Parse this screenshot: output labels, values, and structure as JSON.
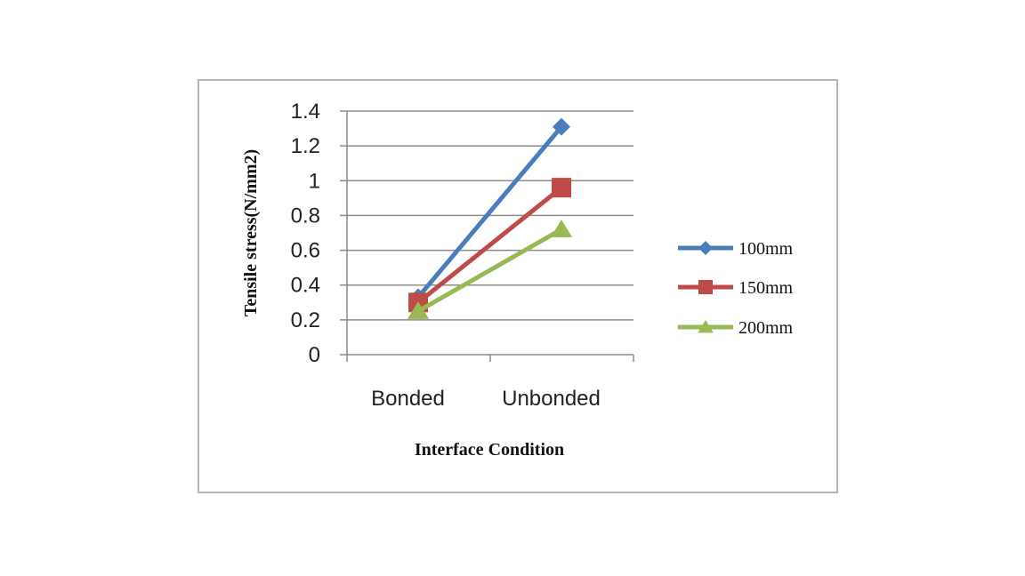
{
  "chart_data": {
    "type": "line",
    "categories": [
      "Bonded",
      "Unbonded"
    ],
    "series": [
      {
        "name": "100mm",
        "values": [
          0.33,
          1.31
        ],
        "color": "#4a7ebb",
        "marker": "diamond"
      },
      {
        "name": "150mm",
        "values": [
          0.3,
          0.96
        ],
        "color": "#be4b48",
        "marker": "square"
      },
      {
        "name": "200mm",
        "values": [
          0.25,
          0.72
        ],
        "color": "#98b954",
        "marker": "triangle"
      }
    ],
    "xlabel": "Interface Condition",
    "ylabel": "Tensile stress(N/mm2)",
    "ylim": [
      0,
      1.4
    ],
    "yticks": [
      "0",
      "0.2",
      "0.4",
      "0.6",
      "0.8",
      "1",
      "1.2",
      "1.4"
    ],
    "grid": true,
    "legend": "right"
  }
}
